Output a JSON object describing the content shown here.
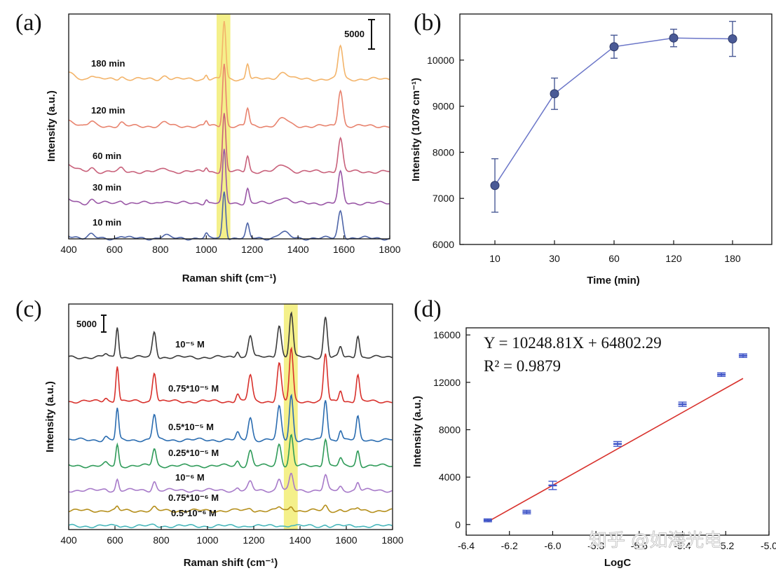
{
  "watermark": "知乎 @如海光电",
  "chart_data": [
    {
      "panel_label": "(a)",
      "type": "line",
      "xlabel": "Raman shift (cm⁻¹)",
      "ylabel": "Intensity (a.u.)",
      "xlim": [
        400,
        1800
      ],
      "xticks": [
        400,
        600,
        800,
        1000,
        1200,
        1400,
        1600,
        1800
      ],
      "scale_bar_label": "5000",
      "highlight_band": [
        1045,
        1105
      ],
      "highlight_color": "#f4f08a",
      "peaks": [
        {
          "pos": 1078,
          "h": 1.0,
          "w": 7
        },
        {
          "pos": 1180,
          "h": 0.28,
          "w": 7
        },
        {
          "pos": 1335,
          "h": 0.12,
          "w": 22
        },
        {
          "pos": 1585,
          "h": 0.58,
          "w": 10
        },
        {
          "pos": 1000,
          "h": 0.08,
          "w": 6
        },
        {
          "pos": 820,
          "h": 0.06,
          "w": 14
        },
        {
          "pos": 630,
          "h": 0.05,
          "w": 10
        },
        {
          "pos": 500,
          "h": 0.07,
          "w": 12
        }
      ],
      "series": [
        {
          "name": "180 min",
          "color": "#f3b46a",
          "scale": 0.55
        },
        {
          "name": "120 min",
          "color": "#e8836e",
          "scale": 0.6
        },
        {
          "name": "60 min",
          "color": "#c8607a",
          "scale": 0.55
        },
        {
          "name": "30 min",
          "color": "#9a57a6",
          "scale": 0.5
        },
        {
          "name": "10 min",
          "color": "#4e65a8",
          "scale": 0.45
        }
      ]
    },
    {
      "panel_label": "(b)",
      "type": "line",
      "xlabel": "Time (min)",
      "ylabel": "Intensity (1078 cm⁻¹)",
      "categories": [
        "10",
        "30",
        "60",
        "120",
        "180"
      ],
      "values": [
        7280,
        9270,
        10290,
        10480,
        10460
      ],
      "errors": [
        580,
        340,
        250,
        190,
        380
      ],
      "ylim": [
        6000,
        11000
      ],
      "yticks": [
        6000,
        7000,
        8000,
        9000,
        10000
      ],
      "color": "#6b76c8",
      "marker_color": "#4a5a96"
    },
    {
      "panel_label": "(c)",
      "type": "line",
      "xlabel": "Raman shift (cm⁻¹)",
      "ylabel": "Intensity (a.u.)",
      "xlim": [
        400,
        1800
      ],
      "xticks": [
        400,
        600,
        800,
        1000,
        1200,
        1400,
        1600,
        1800
      ],
      "scale_bar_label": "5000",
      "highlight_band": [
        1330,
        1390
      ],
      "highlight_color": "#f4f08a",
      "peaks": [
        {
          "pos": 610,
          "h": 0.55,
          "w": 6
        },
        {
          "pos": 770,
          "h": 0.45,
          "w": 8
        },
        {
          "pos": 1185,
          "h": 0.4,
          "w": 9
        },
        {
          "pos": 1310,
          "h": 0.58,
          "w": 9
        },
        {
          "pos": 1362,
          "h": 0.8,
          "w": 8
        },
        {
          "pos": 1510,
          "h": 0.72,
          "w": 8
        },
        {
          "pos": 1575,
          "h": 0.18,
          "w": 7
        },
        {
          "pos": 1650,
          "h": 0.4,
          "w": 7
        },
        {
          "pos": 1130,
          "h": 0.12,
          "w": 7
        },
        {
          "pos": 560,
          "h": 0.06,
          "w": 8
        }
      ],
      "series": [
        {
          "name": "10⁻⁵ M",
          "color": "#3a3a3a",
          "scale": 0.62
        },
        {
          "name": "0.75*10⁻⁵ M",
          "color": "#d8312c",
          "scale": 0.72
        },
        {
          "name": "0.5*10⁻⁵ M",
          "color": "#2a6cb0",
          "scale": 0.62
        },
        {
          "name": "0.25*10⁻⁵ M",
          "color": "#2f9b59",
          "scale": 0.42
        },
        {
          "name": "10⁻⁶ M",
          "color": "#a77ac9",
          "scale": 0.22
        },
        {
          "name": "0.75*10⁻⁶ M",
          "color": "#b58f1c",
          "scale": 0.07
        },
        {
          "name": "0.5*10⁻⁶ M",
          "color": "#48b7bc",
          "scale": 0.02
        }
      ]
    },
    {
      "panel_label": "(d)",
      "type": "scatter",
      "xlabel": "LogC",
      "ylabel": "Intensity (a.u.)",
      "x": [
        -6.3,
        -6.12,
        -6.0,
        -5.7,
        -5.4,
        -5.22,
        -5.12
      ],
      "y": [
        350,
        1050,
        3300,
        6800,
        10150,
        12650,
        14250
      ],
      "errors": [
        120,
        150,
        350,
        200,
        180,
        150,
        150
      ],
      "xlim": [
        -6.4,
        -5.0
      ],
      "xticks": [
        -6.4,
        -6.2,
        -6.0,
        -5.8,
        -5.6,
        -5.4,
        -5.2,
        -5.0
      ],
      "ylim": [
        -900,
        16600
      ],
      "yticks": [
        0,
        4000,
        8000,
        12000,
        16000
      ],
      "fit_label": "Y = 10248.81X + 64802.29",
      "r2_label": "R² = 0.9879",
      "fit_slope": 10248.81,
      "fit_intercept": 64802.29,
      "fit_range": [
        -6.3,
        -5.12
      ],
      "marker_color": "#3f55c8",
      "fit_color": "#d8312c"
    }
  ]
}
